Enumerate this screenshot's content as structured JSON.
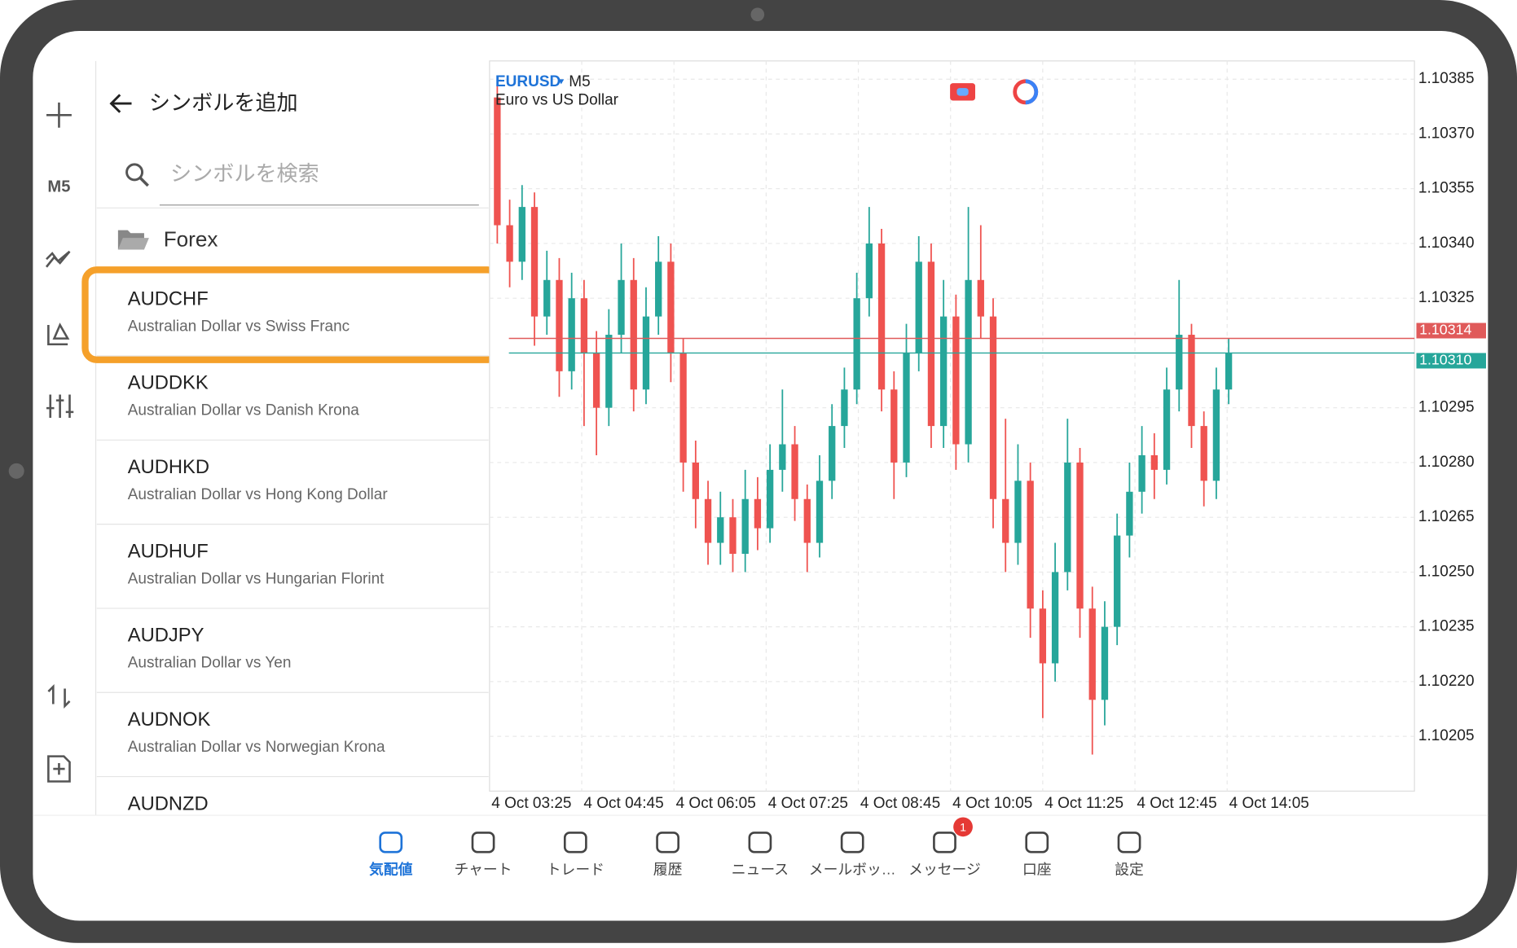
{
  "toolbar": {
    "timeframe": "M5"
  },
  "panel": {
    "title": "シンボルを追加",
    "search_placeholder": "シンボルを検索",
    "folder": "Forex",
    "symbols": [
      {
        "name": "AUDCHF",
        "description": "Australian Dollar vs Swiss Franc"
      },
      {
        "name": "AUDDKK",
        "description": "Australian Dollar vs Danish Krona"
      },
      {
        "name": "AUDHKD",
        "description": "Australian Dollar vs Hong Kong Dollar"
      },
      {
        "name": "AUDHUF",
        "description": "Australian Dollar vs Hungarian Florint"
      },
      {
        "name": "AUDJPY",
        "description": "Australian Dollar vs Yen"
      },
      {
        "name": "AUDNOK",
        "description": "Australian Dollar vs Norwegian Krona"
      },
      {
        "name": "AUDNZD",
        "description": ""
      }
    ]
  },
  "chart_data": {
    "type": "candlestick",
    "symbol": "EURUSD",
    "timeframe": "M5",
    "description": "Euro vs US Dollar",
    "up_color": "#26a69a",
    "down_color": "#ef5350",
    "grid": true,
    "ylim": [
      1.1019,
      1.1039
    ],
    "yticks": [
      1.10385,
      {
        "value": 1.1037,
        "label": "1.10370"
      },
      1.10355,
      {
        "value": 1.1034,
        "label": "1.10340"
      },
      1.10325,
      1.10295,
      {
        "value": 1.1028,
        "label": "1.10280"
      },
      1.10265,
      {
        "value": 1.1025,
        "label": "1.10250"
      },
      1.10235,
      {
        "value": 1.1022,
        "label": "1.10220"
      },
      1.10205
    ],
    "price_lines": [
      {
        "value": 1.10314,
        "color": "#e05a5a"
      },
      {
        "value": 1.1031,
        "label": "1.10310",
        "color": "#26a69a"
      }
    ],
    "time_labels": [
      "4 Oct 03:25",
      "4 Oct 04:45",
      "4 Oct 06:05",
      "4 Oct 07:25",
      "4 Oct 08:45",
      "4 Oct 10:05",
      "4 Oct 11:25",
      "4 Oct 12:45",
      "4 Oct 14:05"
    ],
    "candles": [
      [
        1.1038,
        1.10385,
        1.1034,
        1.10345
      ],
      [
        1.10345,
        1.10352,
        1.10328,
        1.10335
      ],
      [
        1.10335,
        1.10356,
        1.1033,
        1.1035
      ],
      [
        1.1035,
        1.10354,
        1.10312,
        1.1032
      ],
      [
        1.1032,
        1.10338,
        1.10315,
        1.1033
      ],
      [
        1.1033,
        1.10336,
        1.10298,
        1.10305
      ],
      [
        1.10305,
        1.10332,
        1.103,
        1.10325
      ],
      [
        1.10325,
        1.1033,
        1.1029,
        1.1031
      ],
      [
        1.1031,
        1.10316,
        1.10282,
        1.10295
      ],
      [
        1.10295,
        1.10322,
        1.1029,
        1.10315
      ],
      [
        1.10315,
        1.1034,
        1.1031,
        1.1033
      ],
      [
        1.1033,
        1.10336,
        1.10294,
        1.103
      ],
      [
        1.103,
        1.10328,
        1.10296,
        1.1032
      ],
      [
        1.1032,
        1.10342,
        1.10315,
        1.10335
      ],
      [
        1.10335,
        1.1034,
        1.10302,
        1.1031
      ],
      [
        1.1031,
        1.10314,
        1.10272,
        1.1028
      ],
      [
        1.1028,
        1.10286,
        1.10262,
        1.1027
      ],
      [
        1.1027,
        1.10275,
        1.10252,
        1.10258
      ],
      [
        1.10258,
        1.10272,
        1.10252,
        1.10265
      ],
      [
        1.10265,
        1.1027,
        1.1025,
        1.10255
      ],
      [
        1.10255,
        1.10278,
        1.1025,
        1.1027
      ],
      [
        1.1027,
        1.10276,
        1.10256,
        1.10262
      ],
      [
        1.10262,
        1.10285,
        1.10258,
        1.10278
      ],
      [
        1.10278,
        1.103,
        1.10272,
        1.10285
      ],
      [
        1.10285,
        1.1029,
        1.10264,
        1.1027
      ],
      [
        1.1027,
        1.10274,
        1.1025,
        1.10258
      ],
      [
        1.10258,
        1.10282,
        1.10254,
        1.10275
      ],
      [
        1.10275,
        1.10296,
        1.1027,
        1.1029
      ],
      [
        1.1029,
        1.10306,
        1.10284,
        1.103
      ],
      [
        1.103,
        1.10332,
        1.10296,
        1.10325
      ],
      [
        1.10325,
        1.1035,
        1.1032,
        1.1034
      ],
      [
        1.1034,
        1.10344,
        1.10294,
        1.103
      ],
      [
        1.103,
        1.10305,
        1.1027,
        1.1028
      ],
      [
        1.1028,
        1.10318,
        1.10276,
        1.1031
      ],
      [
        1.1031,
        1.10342,
        1.10305,
        1.10335
      ],
      [
        1.10335,
        1.1034,
        1.10284,
        1.1029
      ],
      [
        1.1029,
        1.1033,
        1.10284,
        1.1032
      ],
      [
        1.1032,
        1.10326,
        1.10278,
        1.10285
      ],
      [
        1.10285,
        1.1035,
        1.1028,
        1.1033
      ],
      [
        1.1033,
        1.10345,
        1.10314,
        1.1032
      ],
      [
        1.1032,
        1.10325,
        1.10262,
        1.1027
      ],
      [
        1.1027,
        1.10292,
        1.1025,
        1.10258
      ],
      [
        1.10258,
        1.10285,
        1.10252,
        1.10275
      ],
      [
        1.10275,
        1.1028,
        1.10232,
        1.1024
      ],
      [
        1.1024,
        1.10245,
        1.1021,
        1.10225
      ],
      [
        1.10225,
        1.10258,
        1.1022,
        1.1025
      ],
      [
        1.1025,
        1.10292,
        1.10245,
        1.1028
      ],
      [
        1.1028,
        1.10284,
        1.10232,
        1.1024
      ],
      [
        1.1024,
        1.10246,
        1.102,
        1.10215
      ],
      [
        1.10215,
        1.10242,
        1.10208,
        1.10235
      ],
      [
        1.10235,
        1.10266,
        1.1023,
        1.1026
      ],
      [
        1.1026,
        1.1028,
        1.10254,
        1.10272
      ],
      [
        1.10272,
        1.1029,
        1.10266,
        1.10282
      ],
      [
        1.10282,
        1.10288,
        1.1027,
        1.10278
      ],
      [
        1.10278,
        1.10306,
        1.10274,
        1.103
      ],
      [
        1.103,
        1.1033,
        1.10294,
        1.10315
      ],
      [
        1.10315,
        1.10318,
        1.10284,
        1.1029
      ],
      [
        1.1029,
        1.10294,
        1.10268,
        1.10275
      ],
      [
        1.10275,
        1.10306,
        1.1027,
        1.103
      ],
      [
        1.103,
        1.10314,
        1.10296,
        1.1031
      ]
    ]
  },
  "nav": {
    "items": [
      "気配値",
      "チャート",
      "トレード",
      "履歴",
      "ニュース",
      "メールボッ…",
      "メッセージ",
      "口座",
      "設定"
    ],
    "badge": 1
  }
}
